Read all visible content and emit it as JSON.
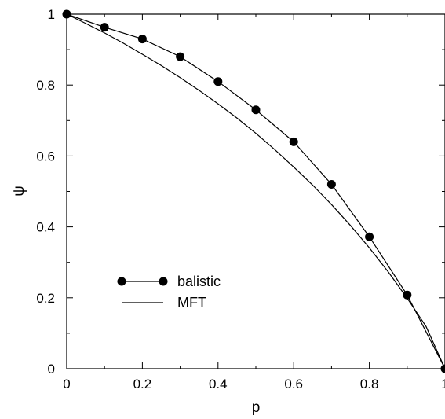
{
  "chart_data": {
    "type": "line",
    "title": "",
    "xlabel": "p",
    "ylabel": "ψ",
    "xlim": [
      0,
      1
    ],
    "ylim": [
      0,
      1
    ],
    "x_ticks": [
      "0",
      "0.2",
      "0.4",
      "0.6",
      "0.8",
      "1"
    ],
    "y_ticks": [
      "0",
      "0.2",
      "0.4",
      "0.6",
      "0.8",
      "1"
    ],
    "grid": false,
    "legend_position": "lower-left",
    "series": [
      {
        "name": "balistic",
        "marker": "filled-circle",
        "color": "#000000",
        "x": [
          0,
          0.1,
          0.2,
          0.3,
          0.4,
          0.5,
          0.6,
          0.7,
          0.8,
          0.9,
          1.0
        ],
        "y": [
          1.0,
          0.963,
          0.93,
          0.88,
          0.81,
          0.73,
          0.64,
          0.52,
          0.372,
          0.208,
          0.0
        ]
      },
      {
        "name": "MFT",
        "marker": "none",
        "color": "#000000",
        "x": [
          0,
          0.05,
          0.1,
          0.15,
          0.2,
          0.25,
          0.3,
          0.35,
          0.4,
          0.45,
          0.5,
          0.55,
          0.6,
          0.65,
          0.7,
          0.75,
          0.8,
          0.85,
          0.9,
          0.95,
          1.0
        ],
        "y": [
          1.0,
          0.974,
          0.947,
          0.918,
          0.887,
          0.855,
          0.821,
          0.785,
          0.747,
          0.707,
          0.664,
          0.618,
          0.569,
          0.518,
          0.463,
          0.404,
          0.341,
          0.273,
          0.199,
          0.119,
          0.0
        ]
      }
    ]
  }
}
